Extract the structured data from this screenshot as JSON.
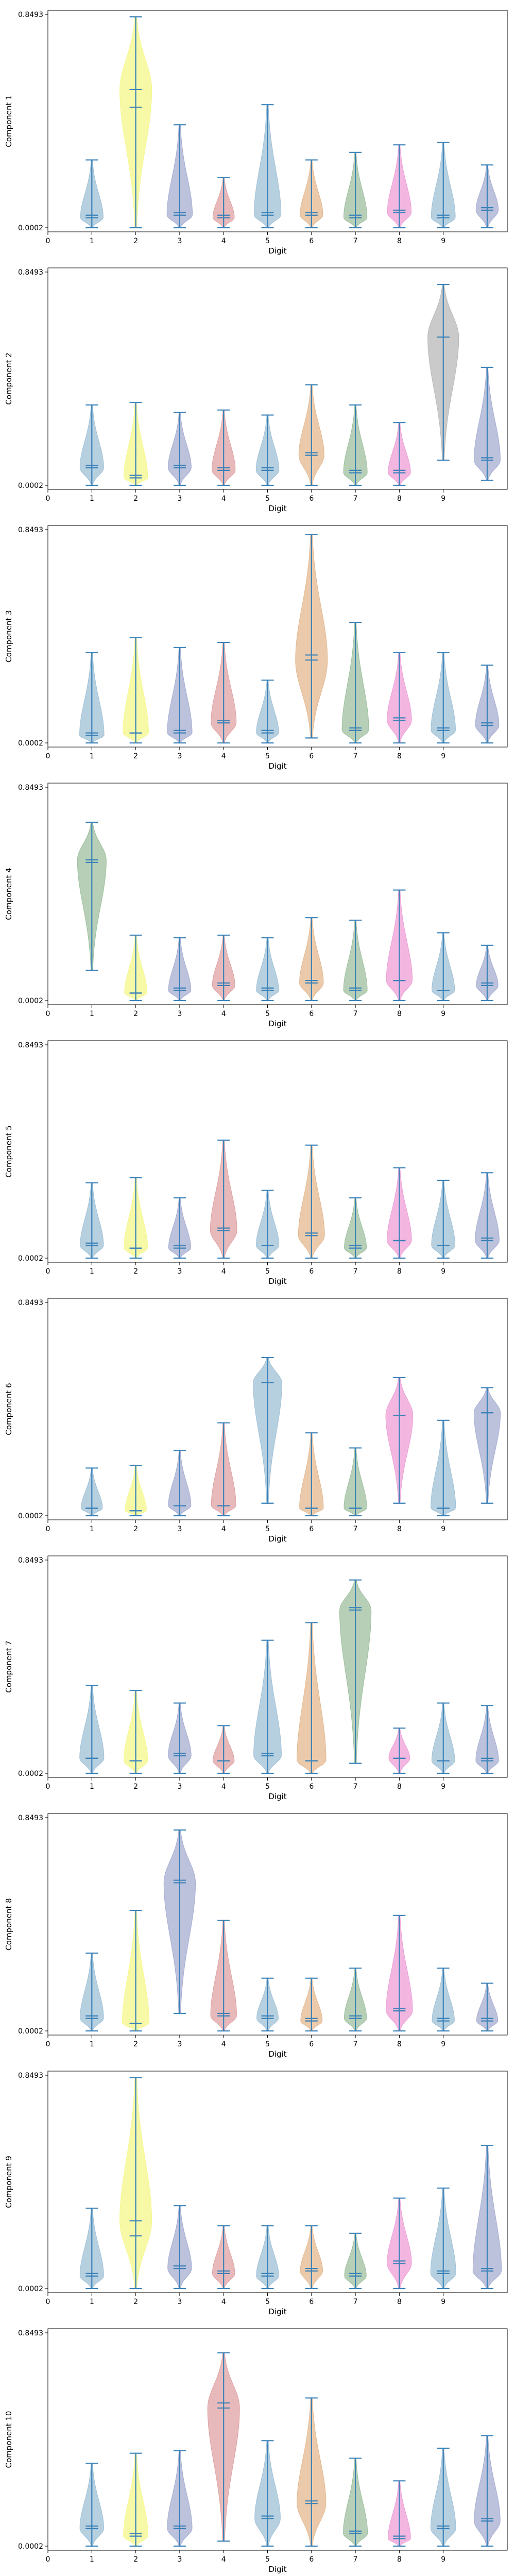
{
  "chart_data": [
    {
      "type": "violin",
      "xlabel": "Digit",
      "ylabel": "Component 1",
      "xticks": [
        "0",
        "1",
        "2",
        "3",
        "4",
        "5",
        "6",
        "7",
        "8",
        "9"
      ],
      "ytick_labels": [
        "0.0002",
        "0.8493"
      ],
      "ylim": [
        0.0002,
        0.8493
      ],
      "violins": [
        {
          "min": 0.0002,
          "max": 0.27,
          "median": 0.04,
          "mean": 0.05,
          "color": "#9fc0d6"
        },
        {
          "min": 0.0002,
          "max": 0.84,
          "median": 0.55,
          "mean": 0.48,
          "color": "#f4f78a"
        },
        {
          "min": 0.0002,
          "max": 0.41,
          "median": 0.05,
          "mean": 0.06,
          "color": "#a5acd0"
        },
        {
          "min": 0.0002,
          "max": 0.2,
          "median": 0.04,
          "mean": 0.05,
          "color": "#e0a1a3"
        },
        {
          "min": 0.0002,
          "max": 0.49,
          "median": 0.05,
          "mean": 0.06,
          "color": "#9fc0d6"
        },
        {
          "min": 0.0002,
          "max": 0.27,
          "median": 0.05,
          "mean": 0.06,
          "color": "#e3b88f"
        },
        {
          "min": 0.0002,
          "max": 0.3,
          "median": 0.04,
          "mean": 0.05,
          "color": "#9dbf9d"
        },
        {
          "min": 0.0002,
          "max": 0.33,
          "median": 0.06,
          "mean": 0.07,
          "color": "#ee9ed6"
        },
        {
          "min": 0.0002,
          "max": 0.34,
          "median": 0.04,
          "mean": 0.05,
          "color": "#9fc0d6"
        },
        {
          "min": 0.0002,
          "max": 0.25,
          "median": 0.07,
          "mean": 0.08,
          "color": "#a5acd0"
        }
      ]
    },
    {
      "type": "violin",
      "xlabel": "Digit",
      "ylabel": "Component 2",
      "xticks": [
        "0",
        "1",
        "2",
        "3",
        "4",
        "5",
        "6",
        "7",
        "8",
        "9"
      ],
      "ytick_labels": [
        "0.0002",
        "0.8493"
      ],
      "ylim": [
        0.0002,
        0.8493
      ],
      "violins": [
        {
          "min": 0.0002,
          "max": 0.32,
          "median": 0.07,
          "mean": 0.08,
          "color": "#9fc0d6"
        },
        {
          "min": 0.0002,
          "max": 0.33,
          "median": 0.03,
          "mean": 0.04,
          "color": "#f4f78a"
        },
        {
          "min": 0.0002,
          "max": 0.29,
          "median": 0.07,
          "mean": 0.08,
          "color": "#a5acd0"
        },
        {
          "min": 0.0002,
          "max": 0.3,
          "median": 0.06,
          "mean": 0.07,
          "color": "#e0a1a3"
        },
        {
          "min": 0.0002,
          "max": 0.28,
          "median": 0.06,
          "mean": 0.07,
          "color": "#9fc0d6"
        },
        {
          "min": 0.0002,
          "max": 0.4,
          "median": 0.12,
          "mean": 0.13,
          "color": "#e3b88f"
        },
        {
          "min": 0.0002,
          "max": 0.32,
          "median": 0.05,
          "mean": 0.06,
          "color": "#9dbf9d"
        },
        {
          "min": 0.0002,
          "max": 0.25,
          "median": 0.05,
          "mean": 0.06,
          "color": "#ee9ed6"
        },
        {
          "min": 0.1,
          "max": 0.8,
          "median": 0.59,
          "mean": 0.59,
          "color": "#b8b8b8"
        },
        {
          "min": 0.02,
          "max": 0.47,
          "median": 0.1,
          "mean": 0.11,
          "color": "#a5acd0"
        }
      ]
    },
    {
      "type": "violin",
      "xlabel": "Digit",
      "ylabel": "Component 3",
      "xticks": [
        "0",
        "1",
        "2",
        "3",
        "4",
        "5",
        "6",
        "7",
        "8",
        "9"
      ],
      "ytick_labels": [
        "0.0002",
        "0.8493"
      ],
      "ylim": [
        0.0002,
        0.8493
      ],
      "violins": [
        {
          "min": 0.0002,
          "max": 0.36,
          "median": 0.03,
          "mean": 0.04,
          "color": "#9fc0d6"
        },
        {
          "min": 0.0002,
          "max": 0.42,
          "median": 0.04,
          "mean": 0.04,
          "color": "#f4f78a"
        },
        {
          "min": 0.0002,
          "max": 0.38,
          "median": 0.04,
          "mean": 0.05,
          "color": "#a5acd0"
        },
        {
          "min": 0.0002,
          "max": 0.4,
          "median": 0.08,
          "mean": 0.09,
          "color": "#e0a1a3"
        },
        {
          "min": 0.0002,
          "max": 0.25,
          "median": 0.04,
          "mean": 0.05,
          "color": "#9fc0d6"
        },
        {
          "min": 0.02,
          "max": 0.83,
          "median": 0.33,
          "mean": 0.35,
          "color": "#e3b88f"
        },
        {
          "min": 0.0002,
          "max": 0.48,
          "median": 0.05,
          "mean": 0.06,
          "color": "#9dbf9d"
        },
        {
          "min": 0.0002,
          "max": 0.36,
          "median": 0.09,
          "mean": 0.1,
          "color": "#ee9ed6"
        },
        {
          "min": 0.0002,
          "max": 0.36,
          "median": 0.05,
          "mean": 0.06,
          "color": "#9fc0d6"
        },
        {
          "min": 0.0002,
          "max": 0.31,
          "median": 0.07,
          "mean": 0.08,
          "color": "#a5acd0"
        }
      ]
    },
    {
      "type": "violin",
      "xlabel": "Digit",
      "ylabel": "Component 4",
      "xticks": [
        "0",
        "1",
        "2",
        "3",
        "4",
        "5",
        "6",
        "7",
        "8",
        "9"
      ],
      "ytick_labels": [
        "0.0002",
        "0.8493"
      ],
      "ylim": [
        0.0002,
        0.8493
      ],
      "violins": [
        {
          "min": 0.12,
          "max": 0.71,
          "median": 0.56,
          "mean": 0.55,
          "color": "#9dbf9d"
        },
        {
          "min": 0.0002,
          "max": 0.26,
          "median": 0.03,
          "mean": 0.03,
          "color": "#f4f78a"
        },
        {
          "min": 0.0002,
          "max": 0.25,
          "median": 0.04,
          "mean": 0.05,
          "color": "#a5acd0"
        },
        {
          "min": 0.0002,
          "max": 0.26,
          "median": 0.06,
          "mean": 0.07,
          "color": "#e0a1a3"
        },
        {
          "min": 0.0002,
          "max": 0.25,
          "median": 0.04,
          "mean": 0.05,
          "color": "#9fc0d6"
        },
        {
          "min": 0.0002,
          "max": 0.33,
          "median": 0.07,
          "mean": 0.08,
          "color": "#e3b88f"
        },
        {
          "min": 0.0002,
          "max": 0.32,
          "median": 0.04,
          "mean": 0.05,
          "color": "#9dbf9d"
        },
        {
          "min": 0.0002,
          "max": 0.44,
          "median": 0.08,
          "mean": 0.08,
          "color": "#ee9ed6"
        },
        {
          "min": 0.0002,
          "max": 0.27,
          "median": 0.04,
          "mean": 0.04,
          "color": "#9fc0d6"
        },
        {
          "min": 0.0002,
          "max": 0.22,
          "median": 0.06,
          "mean": 0.07,
          "color": "#a5acd0"
        }
      ]
    },
    {
      "type": "violin",
      "xlabel": "Digit",
      "ylabel": "Component 5",
      "xticks": [
        "0",
        "1",
        "2",
        "3",
        "4",
        "5",
        "6",
        "7",
        "8",
        "9"
      ],
      "ytick_labels": [
        "0.0002",
        "0.8493"
      ],
      "ylim": [
        0.0002,
        0.8493
      ],
      "violins": [
        {
          "min": 0.0002,
          "max": 0.3,
          "median": 0.05,
          "mean": 0.06,
          "color": "#9fc0d6"
        },
        {
          "min": 0.0002,
          "max": 0.32,
          "median": 0.04,
          "mean": 0.04,
          "color": "#f4f78a"
        },
        {
          "min": 0.0002,
          "max": 0.24,
          "median": 0.04,
          "mean": 0.05,
          "color": "#a5acd0"
        },
        {
          "min": 0.0002,
          "max": 0.47,
          "median": 0.11,
          "mean": 0.12,
          "color": "#e0a1a3"
        },
        {
          "min": 0.0002,
          "max": 0.27,
          "median": 0.05,
          "mean": 0.05,
          "color": "#9fc0d6"
        },
        {
          "min": 0.0002,
          "max": 0.45,
          "median": 0.09,
          "mean": 0.1,
          "color": "#e3b88f"
        },
        {
          "min": 0.0002,
          "max": 0.24,
          "median": 0.04,
          "mean": 0.05,
          "color": "#9dbf9d"
        },
        {
          "min": 0.0002,
          "max": 0.36,
          "median": 0.07,
          "mean": 0.07,
          "color": "#ee9ed6"
        },
        {
          "min": 0.0002,
          "max": 0.31,
          "median": 0.05,
          "mean": 0.05,
          "color": "#9fc0d6"
        },
        {
          "min": 0.0002,
          "max": 0.34,
          "median": 0.07,
          "mean": 0.08,
          "color": "#a5acd0"
        }
      ]
    },
    {
      "type": "violin",
      "xlabel": "Digit",
      "ylabel": "Component 6",
      "xticks": [
        "0",
        "1",
        "2",
        "3",
        "4",
        "5",
        "6",
        "7",
        "8",
        "9"
      ],
      "ytick_labels": [
        "0.0002",
        "0.8493"
      ],
      "ylim": [
        0.0002,
        0.8493
      ],
      "violins": [
        {
          "min": 0.0002,
          "max": 0.19,
          "median": 0.03,
          "mean": 0.03,
          "color": "#9fc0d6"
        },
        {
          "min": 0.0002,
          "max": 0.2,
          "median": 0.02,
          "mean": 0.02,
          "color": "#f4f78a"
        },
        {
          "min": 0.0002,
          "max": 0.26,
          "median": 0.04,
          "mean": 0.04,
          "color": "#a5acd0"
        },
        {
          "min": 0.0002,
          "max": 0.37,
          "median": 0.04,
          "mean": 0.04,
          "color": "#e0a1a3"
        },
        {
          "min": 0.05,
          "max": 0.63,
          "median": 0.53,
          "mean": 0.53,
          "color": "#9fc0d6"
        },
        {
          "min": 0.0002,
          "max": 0.33,
          "median": 0.03,
          "mean": 0.03,
          "color": "#e3b88f"
        },
        {
          "min": 0.0002,
          "max": 0.27,
          "median": 0.03,
          "mean": 0.03,
          "color": "#9dbf9d"
        },
        {
          "min": 0.05,
          "max": 0.55,
          "median": 0.4,
          "mean": 0.4,
          "color": "#ee9ed6"
        },
        {
          "min": 0.0002,
          "max": 0.38,
          "median": 0.03,
          "mean": 0.03,
          "color": "#9fc0d6"
        },
        {
          "min": 0.05,
          "max": 0.51,
          "median": 0.41,
          "mean": 0.41,
          "color": "#a5acd0"
        }
      ]
    },
    {
      "type": "violin",
      "xlabel": "Digit",
      "ylabel": "Component 7",
      "xticks": [
        "0",
        "1",
        "2",
        "3",
        "4",
        "5",
        "6",
        "7",
        "8",
        "9"
      ],
      "ytick_labels": [
        "0.0002",
        "0.8493"
      ],
      "ylim": [
        0.0002,
        0.8493
      ],
      "violins": [
        {
          "min": 0.0002,
          "max": 0.35,
          "median": 0.06,
          "mean": 0.06,
          "color": "#9fc0d6"
        },
        {
          "min": 0.0002,
          "max": 0.33,
          "median": 0.05,
          "mean": 0.05,
          "color": "#f4f78a"
        },
        {
          "min": 0.0002,
          "max": 0.28,
          "median": 0.07,
          "mean": 0.08,
          "color": "#a5acd0"
        },
        {
          "min": 0.0002,
          "max": 0.19,
          "median": 0.05,
          "mean": 0.05,
          "color": "#e0a1a3"
        },
        {
          "min": 0.0002,
          "max": 0.53,
          "median": 0.07,
          "mean": 0.08,
          "color": "#9fc0d6"
        },
        {
          "min": 0.0002,
          "max": 0.6,
          "median": 0.05,
          "mean": 0.05,
          "color": "#e3b88f"
        },
        {
          "min": 0.04,
          "max": 0.77,
          "median": 0.65,
          "mean": 0.66,
          "color": "#9dbf9d"
        },
        {
          "min": 0.0002,
          "max": 0.18,
          "median": 0.06,
          "mean": 0.06,
          "color": "#ee9ed6"
        },
        {
          "min": 0.0002,
          "max": 0.28,
          "median": 0.05,
          "mean": 0.05,
          "color": "#9fc0d6"
        },
        {
          "min": 0.0002,
          "max": 0.27,
          "median": 0.05,
          "mean": 0.06,
          "color": "#a5acd0"
        }
      ]
    },
    {
      "type": "violin",
      "xlabel": "Digit",
      "ylabel": "Component 8",
      "xticks": [
        "0",
        "1",
        "2",
        "3",
        "4",
        "5",
        "6",
        "7",
        "8",
        "9"
      ],
      "ytick_labels": [
        "0.0002",
        "0.8493"
      ],
      "ylim": [
        0.0002,
        0.8493
      ],
      "violins": [
        {
          "min": 0.0002,
          "max": 0.31,
          "median": 0.05,
          "mean": 0.06,
          "color": "#9fc0d6"
        },
        {
          "min": 0.0002,
          "max": 0.48,
          "median": 0.03,
          "mean": 0.03,
          "color": "#f4f78a"
        },
        {
          "min": 0.07,
          "max": 0.8,
          "median": 0.59,
          "mean": 0.6,
          "color": "#a5acd0"
        },
        {
          "min": 0.0002,
          "max": 0.44,
          "median": 0.06,
          "mean": 0.07,
          "color": "#e0a1a3"
        },
        {
          "min": 0.0002,
          "max": 0.21,
          "median": 0.05,
          "mean": 0.06,
          "color": "#9fc0d6"
        },
        {
          "min": 0.0002,
          "max": 0.21,
          "median": 0.04,
          "mean": 0.05,
          "color": "#e3b88f"
        },
        {
          "min": 0.0002,
          "max": 0.25,
          "median": 0.05,
          "mean": 0.06,
          "color": "#9dbf9d"
        },
        {
          "min": 0.0002,
          "max": 0.46,
          "median": 0.08,
          "mean": 0.09,
          "color": "#ee9ed6"
        },
        {
          "min": 0.0002,
          "max": 0.25,
          "median": 0.04,
          "mean": 0.05,
          "color": "#9fc0d6"
        },
        {
          "min": 0.0002,
          "max": 0.19,
          "median": 0.04,
          "mean": 0.05,
          "color": "#a5acd0"
        }
      ]
    },
    {
      "type": "violin",
      "xlabel": "Digit",
      "ylabel": "Component 9",
      "xticks": [
        "0",
        "1",
        "2",
        "3",
        "4",
        "5",
        "6",
        "7",
        "8",
        "9"
      ],
      "ytick_labels": [
        "0.0002",
        "0.8493"
      ],
      "ylim": [
        0.0002,
        0.8493
      ],
      "violins": [
        {
          "min": 0.0002,
          "max": 0.32,
          "median": 0.05,
          "mean": 0.06,
          "color": "#9fc0d6"
        },
        {
          "min": 0.0002,
          "max": 0.84,
          "median": 0.27,
          "mean": 0.21,
          "color": "#f4f78a"
        },
        {
          "min": 0.0002,
          "max": 0.33,
          "median": 0.08,
          "mean": 0.09,
          "color": "#a5acd0"
        },
        {
          "min": 0.0002,
          "max": 0.25,
          "median": 0.06,
          "mean": 0.07,
          "color": "#e0a1a3"
        },
        {
          "min": 0.0002,
          "max": 0.25,
          "median": 0.05,
          "mean": 0.06,
          "color": "#9fc0d6"
        },
        {
          "min": 0.0002,
          "max": 0.25,
          "median": 0.07,
          "mean": 0.08,
          "color": "#e3b88f"
        },
        {
          "min": 0.0002,
          "max": 0.22,
          "median": 0.05,
          "mean": 0.06,
          "color": "#9dbf9d"
        },
        {
          "min": 0.0002,
          "max": 0.36,
          "median": 0.1,
          "mean": 0.11,
          "color": "#ee9ed6"
        },
        {
          "min": 0.0002,
          "max": 0.4,
          "median": 0.06,
          "mean": 0.07,
          "color": "#9fc0d6"
        },
        {
          "min": 0.0002,
          "max": 0.57,
          "median": 0.07,
          "mean": 0.08,
          "color": "#a5acd0"
        }
      ]
    },
    {
      "type": "violin",
      "xlabel": "Digit",
      "ylabel": "Component 10",
      "xticks": [
        "0",
        "1",
        "2",
        "3",
        "4",
        "5",
        "6",
        "7",
        "8",
        "9"
      ],
      "ytick_labels": [
        "0.0002",
        "0.8493"
      ],
      "ylim": [
        0.0002,
        0.8493
      ],
      "violins": [
        {
          "min": 0.0002,
          "max": 0.33,
          "median": 0.07,
          "mean": 0.08,
          "color": "#9fc0d6"
        },
        {
          "min": 0.0002,
          "max": 0.37,
          "median": 0.04,
          "mean": 0.05,
          "color": "#f4f78a"
        },
        {
          "min": 0.0002,
          "max": 0.38,
          "median": 0.07,
          "mean": 0.08,
          "color": "#a5acd0"
        },
        {
          "min": 0.02,
          "max": 0.77,
          "median": 0.55,
          "mean": 0.57,
          "color": "#e0a1a3"
        },
        {
          "min": 0.0002,
          "max": 0.42,
          "median": 0.11,
          "mean": 0.12,
          "color": "#9fc0d6"
        },
        {
          "min": 0.0002,
          "max": 0.59,
          "median": 0.17,
          "mean": 0.18,
          "color": "#e3b88f"
        },
        {
          "min": 0.0002,
          "max": 0.35,
          "median": 0.05,
          "mean": 0.06,
          "color": "#9dbf9d"
        },
        {
          "min": 0.0002,
          "max": 0.26,
          "median": 0.03,
          "mean": 0.04,
          "color": "#ee9ed6"
        },
        {
          "min": 0.0002,
          "max": 0.39,
          "median": 0.07,
          "mean": 0.08,
          "color": "#9fc0d6"
        },
        {
          "min": 0.0002,
          "max": 0.44,
          "median": 0.1,
          "mean": 0.11,
          "color": "#a5acd0"
        }
      ]
    }
  ]
}
